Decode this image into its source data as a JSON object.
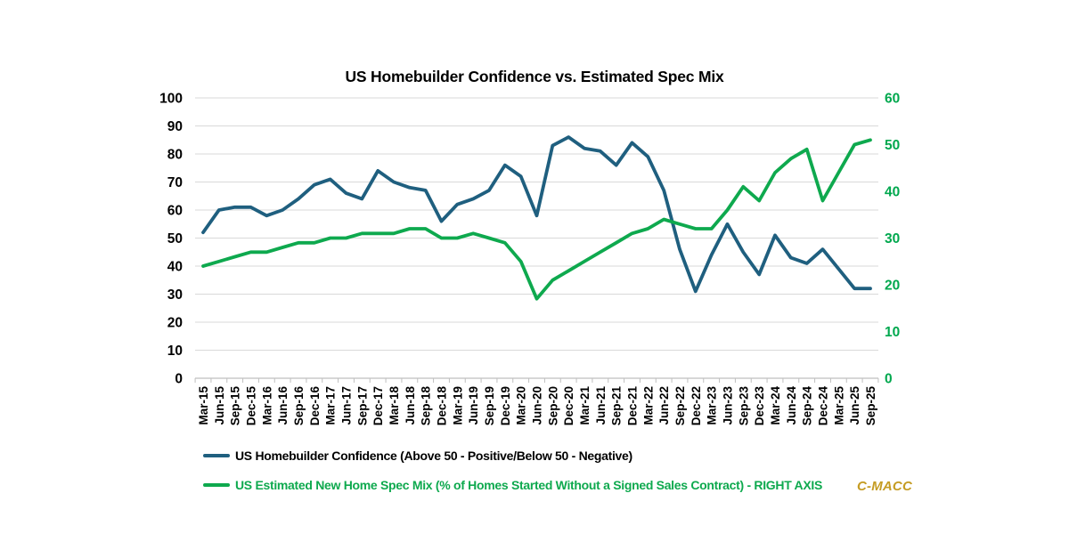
{
  "title": "US Homebuilder Confidence vs. Estimated Spec Mix",
  "watermark": "C-MACC",
  "colors": {
    "confidence_line": "#1F5F7F",
    "spec_mix_line": "#0EA94E",
    "right_axis_text": "#00A84E",
    "left_axis_text": "#000000",
    "grid": "#D9D9D9",
    "axis": "#BFBFBF",
    "watermark": "#C59C23",
    "background": "#FFFFFF"
  },
  "legend": [
    {
      "label": "US Homebuilder Confidence (Above 50 - Positive/Below 50 - Negative)",
      "text_color": "#000000"
    },
    {
      "label": "US Estimated New Home Spec Mix (% of Homes Started Without a Signed Sales Contract) - RIGHT AXIS",
      "text_color": "#0EA94E"
    }
  ],
  "chart_data": {
    "type": "line",
    "title": "US Homebuilder Confidence vs. Estimated Spec Mix",
    "grid": true,
    "legend_position": "bottom",
    "categories": [
      "Mar-15",
      "Jun-15",
      "Sep-15",
      "Dec-15",
      "Mar-16",
      "Jun-16",
      "Sep-16",
      "Dec-16",
      "Mar-17",
      "Jun-17",
      "Sep-17",
      "Dec-17",
      "Mar-18",
      "Jun-18",
      "Sep-18",
      "Dec-18",
      "Mar-19",
      "Jun-19",
      "Sep-19",
      "Dec-19",
      "Mar-20",
      "Jun-20",
      "Sep-20",
      "Dec-20",
      "Mar-21",
      "Jun-21",
      "Sep-21",
      "Dec-21",
      "Mar-22",
      "Jun-22",
      "Sep-22",
      "Dec-22",
      "Mar-23",
      "Jun-23",
      "Sep-23",
      "Dec-23",
      "Mar-24",
      "Jun-24",
      "Sep-24",
      "Dec-24",
      "Mar-25",
      "Jun-25",
      "Sep-25"
    ],
    "series": [
      {
        "name": "US Homebuilder Confidence (Above 50 - Positive/Below 50 - Negative)",
        "axis": "left",
        "color": "#1F5F7F",
        "values": [
          52,
          60,
          61,
          61,
          58,
          60,
          64,
          69,
          71,
          66,
          64,
          74,
          70,
          68,
          67,
          56,
          62,
          64,
          67,
          76,
          72,
          58,
          83,
          86,
          82,
          81,
          76,
          84,
          79,
          67,
          46,
          31,
          44,
          55,
          45,
          37,
          51,
          43,
          41,
          46,
          39,
          32,
          32
        ]
      },
      {
        "name": "US Estimated New Home Spec Mix (% of Homes Started Without a Signed Sales Contract) - RIGHT AXIS",
        "axis": "right",
        "color": "#0EA94E",
        "values": [
          24,
          25,
          26,
          27,
          27,
          28,
          29,
          29,
          30,
          30,
          31,
          31,
          31,
          32,
          32,
          30,
          30,
          31,
          30,
          29,
          25,
          17,
          21,
          23,
          25,
          27,
          29,
          31,
          32,
          34,
          33,
          32,
          32,
          36,
          41,
          38,
          44,
          47,
          49,
          38,
          44,
          50,
          51
        ]
      }
    ],
    "left_axis": {
      "min": 0,
      "max": 100,
      "ticks": [
        0,
        10,
        20,
        30,
        40,
        50,
        60,
        70,
        80,
        90,
        100
      ]
    },
    "right_axis": {
      "min": 0,
      "max": 60,
      "ticks": [
        0,
        10,
        20,
        30,
        40,
        50,
        60
      ]
    }
  }
}
